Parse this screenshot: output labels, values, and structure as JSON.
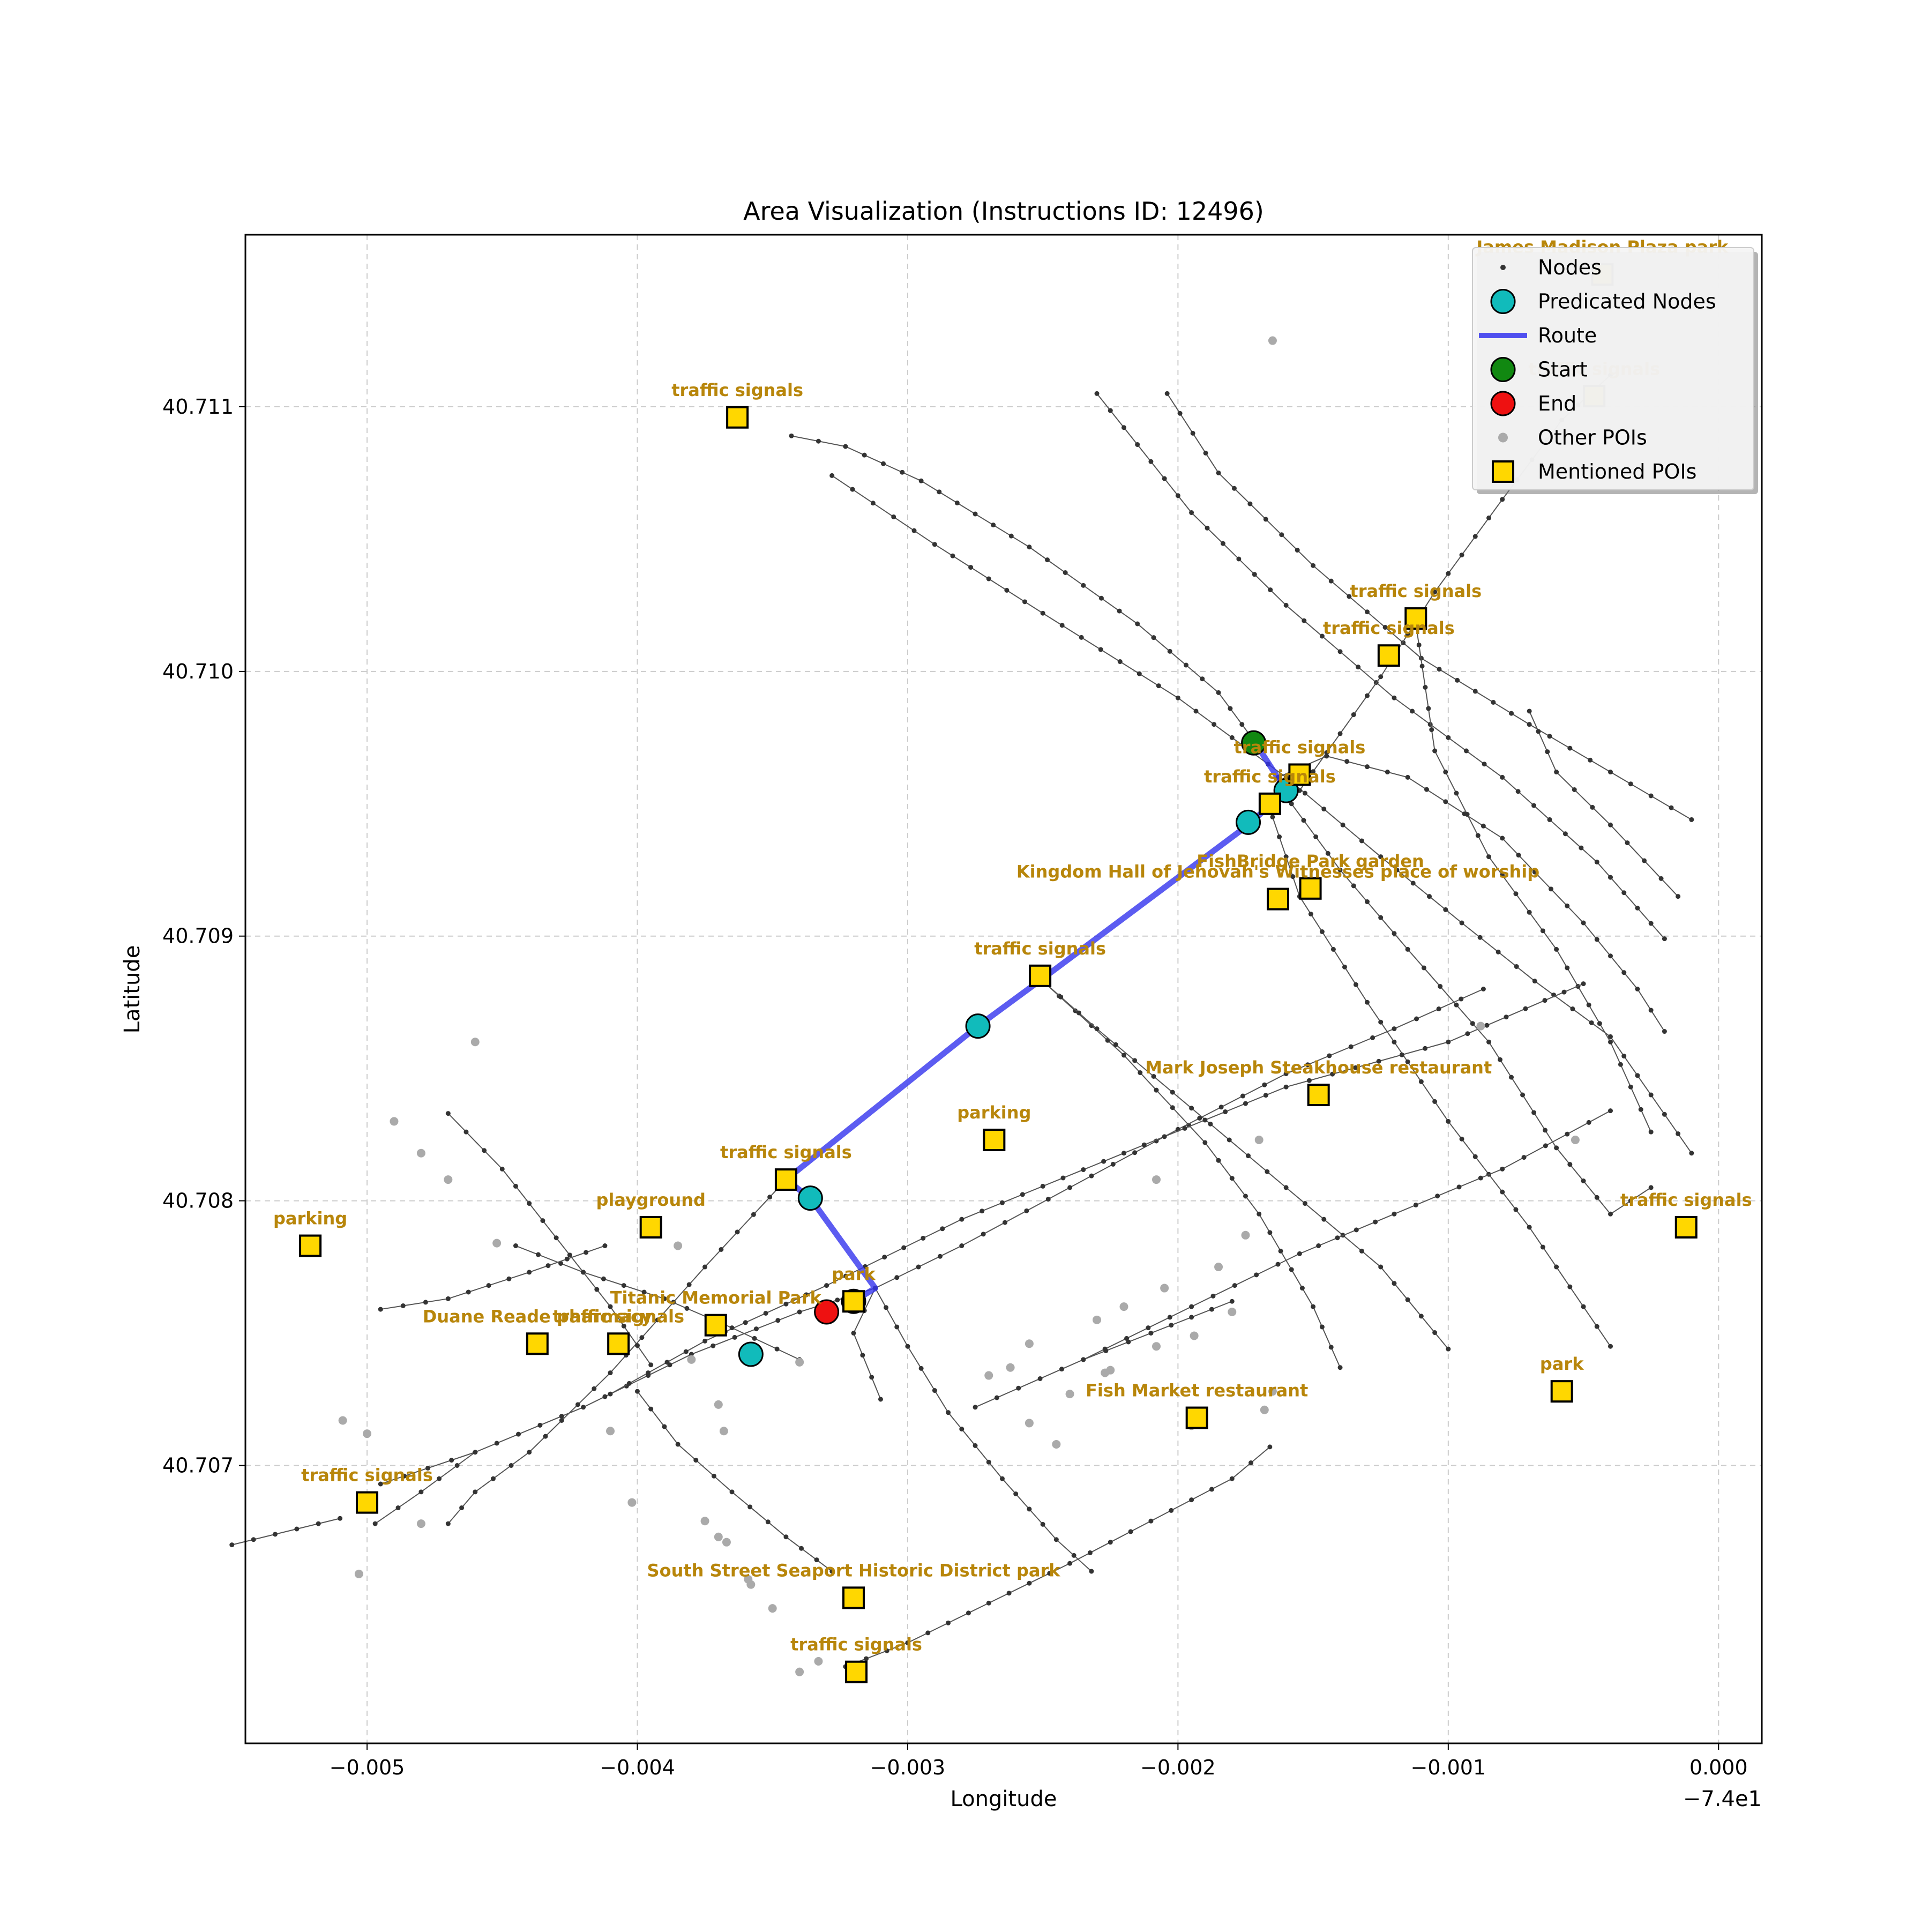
{
  "chart_data": {
    "type": "scatter",
    "title": "Area Visualization (Instructions ID: 12496)",
    "xlabel": "Longitude",
    "ylabel": "Latitude",
    "xlim": [
      -0.00545,
      0.00016
    ],
    "ylim": [
      40.70595,
      40.71165
    ],
    "x_offset_label": "−7.4e1",
    "grid": true,
    "x_ticks": [
      {
        "value": -0.005,
        "label": "−0.005"
      },
      {
        "value": -0.004,
        "label": "−0.004"
      },
      {
        "value": -0.003,
        "label": "−0.003"
      },
      {
        "value": -0.002,
        "label": "−0.002"
      },
      {
        "value": -0.001,
        "label": "−0.001"
      },
      {
        "value": 0.0,
        "label": "0.000"
      }
    ],
    "y_ticks": [
      {
        "value": 40.707,
        "label": "40.707"
      },
      {
        "value": 40.708,
        "label": "40.708"
      },
      {
        "value": 40.709,
        "label": "40.709"
      },
      {
        "value": 40.71,
        "label": "40.710"
      },
      {
        "value": 40.711,
        "label": "40.711"
      }
    ],
    "legend": {
      "position": "top-right",
      "entries": [
        {
          "name": "Nodes",
          "marker": "small-dot"
        },
        {
          "name": "Predicated Nodes",
          "marker": "cyan-circle"
        },
        {
          "name": "Route",
          "marker": "blue-line"
        },
        {
          "name": "Start",
          "marker": "green-circle"
        },
        {
          "name": "End",
          "marker": "red-circle"
        },
        {
          "name": "Other POIs",
          "marker": "gray-dot"
        },
        {
          "name": "Mentioned POIs",
          "marker": "gold-square"
        }
      ]
    },
    "colors": {
      "node": "#333333",
      "street": "#555555",
      "predicated": "#11bbbb",
      "route": "#3333ee",
      "start": "#118811",
      "end": "#ee1111",
      "other_poi": "#aaaaaa",
      "mentioned_poi": "#ffd700",
      "poi_label": "#b8860b",
      "grid": "#cccccc"
    },
    "streets": [
      [
        [
          -0.00343,
          40.71089
        ],
        [
          -0.00323,
          40.71085
        ],
        [
          -0.00295,
          40.71072
        ],
        [
          -0.00255,
          40.71047
        ],
        [
          -0.00215,
          40.71018
        ],
        [
          -0.00185,
          40.70992
        ],
        [
          -0.00172,
          40.70974
        ]
      ],
      [
        [
          -0.00328,
          40.71074
        ],
        [
          -0.0029,
          40.71048
        ],
        [
          -0.0025,
          40.71022
        ],
        [
          -0.002,
          40.7099
        ],
        [
          -0.0016,
          40.7096
        ],
        [
          -0.00125,
          40.7093
        ],
        [
          -0.00095,
          40.70905
        ],
        [
          -0.00068,
          40.70883
        ],
        [
          -0.0004,
          40.70862
        ],
        [
          -0.0001,
          40.70818
        ]
      ],
      [
        [
          -0.0023,
          40.71105
        ],
        [
          -0.00195,
          40.7106
        ],
        [
          -0.0016,
          40.71025
        ],
        [
          -0.0012,
          40.7099
        ],
        [
          -0.0008,
          40.7096
        ],
        [
          -0.00045,
          40.70928
        ],
        [
          -0.0002,
          40.70899
        ]
      ],
      [
        [
          -0.00204,
          40.71105
        ],
        [
          -0.00185,
          40.71075
        ],
        [
          -0.0015,
          40.7104
        ],
        [
          -0.0011,
          40.71005
        ],
        [
          -0.0007,
          40.7098
        ],
        [
          -0.0004,
          40.70962
        ],
        [
          -0.0001,
          40.70944
        ]
      ],
      [
        [
          -0.00163,
          40.7096
        ],
        [
          -0.00145,
          40.70968
        ],
        [
          -0.00115,
          40.7096
        ],
        [
          -0.0008,
          40.70937
        ],
        [
          -0.0005,
          40.70905
        ],
        [
          -0.0003,
          40.7088
        ],
        [
          -0.0002,
          40.70864
        ]
      ],
      [
        [
          -0.00155,
          40.70955
        ],
        [
          -0.00125,
          40.70998
        ],
        [
          -0.00105,
          40.7103
        ],
        [
          -0.0008,
          40.71065
        ],
        [
          -0.00058,
          40.71095
        ],
        [
          -0.0004,
          40.71112
        ]
      ],
      [
        [
          -0.00112,
          40.71018
        ],
        [
          -0.00105,
          40.7097
        ],
        [
          -0.00085,
          40.7093
        ],
        [
          -0.0006,
          40.70895
        ],
        [
          -0.0004,
          40.7086
        ],
        [
          -0.00025,
          40.70826
        ]
      ],
      [
        [
          -0.0007,
          40.70985
        ],
        [
          -0.0006,
          40.70962
        ],
        [
          -0.0004,
          40.70942
        ],
        [
          -0.00015,
          40.70915
        ]
      ],
      [
        [
          -0.00158,
          40.7095
        ],
        [
          -0.0014,
          40.70925
        ],
        [
          -0.00115,
          40.70895
        ],
        [
          -0.00085,
          40.7086
        ],
        [
          -0.0006,
          40.7082
        ],
        [
          -0.0004,
          40.70795
        ],
        [
          -0.00025,
          40.70805
        ]
      ],
      [
        [
          -0.00165,
          40.70945
        ],
        [
          -0.00155,
          40.70915
        ],
        [
          -0.0013,
          40.70875
        ],
        [
          -0.001,
          40.7083
        ],
        [
          -0.0007,
          40.7079
        ],
        [
          -0.0005,
          40.7076
        ],
        [
          -0.0004,
          40.70745
        ]
      ],
      [
        [
          -0.0025,
          40.70883
        ],
        [
          -0.0022,
          40.70855
        ],
        [
          -0.0019,
          40.70822
        ],
        [
          -0.0017,
          40.70795
        ],
        [
          -0.0015,
          40.7076
        ],
        [
          -0.0014,
          40.70737
        ]
      ],
      [
        [
          -0.0025,
          40.70883
        ],
        [
          -0.0023,
          40.70865
        ],
        [
          -0.00195,
          40.70835
        ],
        [
          -0.0016,
          40.70805
        ],
        [
          -0.00125,
          40.70775
        ],
        [
          -0.001,
          40.70744
        ]
      ],
      [
        [
          -0.00345,
          40.70808
        ],
        [
          -0.00375,
          40.70775
        ],
        [
          -0.0041,
          40.70735
        ],
        [
          -0.0044,
          40.70705
        ],
        [
          -0.0046,
          40.7069
        ],
        [
          -0.0047,
          40.70678
        ]
      ],
      [
        [
          -0.00312,
          40.70767
        ],
        [
          -0.0028,
          40.70783
        ],
        [
          -0.0024,
          40.70805
        ],
        [
          -0.002,
          40.70827
        ],
        [
          -0.0016,
          40.70848
        ],
        [
          -0.0012,
          40.70865
        ],
        [
          -0.00087,
          40.7088
        ]
      ],
      [
        [
          -0.00495,
          40.70693
        ],
        [
          -0.0046,
          40.70705
        ],
        [
          -0.0042,
          40.70722
        ],
        [
          -0.0038,
          40.70742
        ],
        [
          -0.0034,
          40.70758
        ],
        [
          -0.00312,
          40.70767
        ]
      ],
      [
        [
          -0.0055,
          40.7067
        ],
        [
          -0.0051,
          40.7068
        ]
      ],
      [
        [
          -0.0041,
          40.70727
        ],
        [
          -0.00375,
          40.70747
        ],
        [
          -0.0033,
          40.70768
        ],
        [
          -0.0028,
          40.70793
        ],
        [
          -0.0022,
          40.70818
        ],
        [
          -0.0016,
          40.70843
        ],
        [
          -0.001,
          40.7086
        ],
        [
          -0.0005,
          40.70882
        ]
      ],
      [
        [
          -0.00275,
          40.70722
        ],
        [
          -0.00235,
          40.7074
        ],
        [
          -0.00195,
          40.7076
        ],
        [
          -0.00155,
          40.7078
        ],
        [
          -0.0012,
          40.70795
        ],
        [
          -0.0008,
          40.70812
        ],
        [
          -0.0004,
          40.70834
        ]
      ],
      [
        [
          -0.00312,
          40.70767
        ],
        [
          -0.003,
          40.70745
        ],
        [
          -0.00285,
          40.7072
        ],
        [
          -0.00265,
          40.70695
        ],
        [
          -0.00245,
          40.70672
        ],
        [
          -0.00232,
          40.7066
        ]
      ],
      [
        [
          -0.00312,
          40.70767
        ],
        [
          -0.0032,
          40.7075
        ],
        [
          -0.0031,
          40.70725
        ]
      ],
      [
        [
          -0.004,
          40.70728
        ],
        [
          -0.00385,
          40.70708
        ],
        [
          -0.00365,
          40.7069
        ],
        [
          -0.00345,
          40.70673
        ],
        [
          -0.00328,
          40.7066
        ]
      ],
      [
        [
          -0.00445,
          40.70783
        ],
        [
          -0.0042,
          40.70773
        ],
        [
          -0.0039,
          40.70763
        ],
        [
          -0.00365,
          40.70752
        ],
        [
          -0.0034,
          40.7074
        ]
      ],
      [
        [
          -0.0047,
          40.70833
        ],
        [
          -0.0045,
          40.70812
        ],
        [
          -0.0043,
          40.70786
        ],
        [
          -0.0041,
          40.7076
        ],
        [
          -0.00395,
          40.70738
        ]
      ],
      [
        [
          -0.00495,
          40.70759
        ],
        [
          -0.0047,
          40.70763
        ],
        [
          -0.0044,
          40.70773
        ],
        [
          -0.00412,
          40.70783
        ]
      ],
      [
        [
          -0.00323,
          40.70624
        ],
        [
          -0.003,
          40.70633
        ],
        [
          -0.0027,
          40.70648
        ],
        [
          -0.0024,
          40.70663
        ],
        [
          -0.0021,
          40.70679
        ],
        [
          -0.0018,
          40.70695
        ],
        [
          -0.00166,
          40.70707
        ]
      ],
      [
        [
          -0.00235,
          40.7074
        ],
        [
          -0.0021,
          40.7075
        ],
        [
          -0.0018,
          40.70762
        ]
      ],
      [
        [
          -0.00497,
          40.70678
        ],
        [
          -0.0048,
          40.7069
        ],
        [
          -0.0046,
          40.70705
        ]
      ]
    ],
    "route": [
      [
        -0.00172,
        40.70974
      ],
      [
        -0.0016,
        40.70955
      ],
      [
        -0.00174,
        40.70942
      ],
      [
        -0.0025,
        40.70884
      ],
      [
        -0.00274,
        40.70866
      ],
      [
        -0.00345,
        40.70808
      ],
      [
        -0.00336,
        40.70801
      ],
      [
        -0.00312,
        40.70767
      ],
      [
        -0.0032,
        40.70762
      ]
    ],
    "predicated_nodes": [
      [
        -0.0016,
        40.70955
      ],
      [
        -0.00174,
        40.70943
      ],
      [
        -0.00274,
        40.70866
      ],
      [
        -0.00336,
        40.70801
      ],
      [
        -0.0032,
        40.70762
      ],
      [
        -0.00358,
        40.70742
      ]
    ],
    "start": [
      -0.00172,
      40.70973
    ],
    "end": [
      -0.0033,
      40.70758
    ],
    "other_pois": [
      [
        -0.00165,
        40.71125
      ],
      [
        -0.0046,
        40.7086
      ],
      [
        -0.0049,
        40.7083
      ],
      [
        -0.0048,
        40.70818
      ],
      [
        -0.0047,
        40.70808
      ],
      [
        -0.00452,
        40.70784
      ],
      [
        -0.00385,
        40.70783
      ],
      [
        -0.0041,
        40.70713
      ],
      [
        -0.0038,
        40.7074
      ],
      [
        -0.0037,
        40.70723
      ],
      [
        -0.00368,
        40.70713
      ],
      [
        -0.0034,
        40.70739
      ],
      [
        -0.00402,
        40.70686
      ],
      [
        -0.00375,
        40.70679
      ],
      [
        -0.0037,
        40.70673
      ],
      [
        -0.00367,
        40.70671
      ],
      [
        -0.00359,
        40.70657
      ],
      [
        -0.00358,
        40.70655
      ],
      [
        -0.0035,
        40.70646
      ],
      [
        -0.0034,
        40.70622
      ],
      [
        -0.00333,
        40.70626
      ],
      [
        -0.00509,
        40.70717
      ],
      [
        -0.005,
        40.70712
      ],
      [
        -0.0048,
        40.70678
      ],
      [
        -0.00503,
        40.70659
      ],
      [
        -0.0027,
        40.70734
      ],
      [
        -0.00262,
        40.70737
      ],
      [
        -0.00255,
        40.70746
      ],
      [
        -0.00255,
        40.70716
      ],
      [
        -0.00245,
        40.70708
      ],
      [
        -0.0024,
        40.70727
      ],
      [
        -0.0023,
        40.70755
      ],
      [
        -0.00227,
        40.70735
      ],
      [
        -0.00225,
        40.70736
      ],
      [
        -0.0022,
        40.7076
      ],
      [
        -0.00208,
        40.70745
      ],
      [
        -0.00205,
        40.70767
      ],
      [
        -0.00195,
        40.70715
      ],
      [
        -0.00194,
        40.70749
      ],
      [
        -0.00185,
        40.70775
      ],
      [
        -0.0018,
        40.70758
      ],
      [
        -0.00175,
        40.70787
      ],
      [
        -0.00168,
        40.70721
      ],
      [
        -0.00165,
        40.70728
      ],
      [
        -0.00208,
        40.70808
      ],
      [
        -0.0017,
        40.70823
      ],
      [
        -0.00088,
        40.70866
      ],
      [
        -0.00053,
        40.70823
      ]
    ],
    "mentioned_pois": [
      {
        "label": "James Madison Plaza   park",
        "x": -0.00043,
        "y": 40.7115
      },
      {
        "label": "traffic signals",
        "x": -0.00046,
        "y": 40.71104
      },
      {
        "label": "traffic signals",
        "x": -0.00363,
        "y": 40.71096
      },
      {
        "label": "traffic signals",
        "x": -0.00112,
        "y": 40.7102
      },
      {
        "label": "traffic signals",
        "x": -0.00122,
        "y": 40.71006
      },
      {
        "label": "traffic signals",
        "x": -0.00155,
        "y": 40.70961
      },
      {
        "label": "traffic signals",
        "x": -0.00166,
        "y": 40.7095
      },
      {
        "label": "FishBridge Park   garden",
        "x": -0.00151,
        "y": 40.70918
      },
      {
        "label": "Kingdom Hall of Jehovah's Witnesses place of worship",
        "x": -0.00163,
        "y": 40.70914
      },
      {
        "label": "traffic signals",
        "x": -0.00251,
        "y": 40.70885
      },
      {
        "label": "Mark Joseph Steakhouse restaurant",
        "x": -0.00148,
        "y": 40.7084
      },
      {
        "label": "parking",
        "x": -0.00268,
        "y": 40.70823
      },
      {
        "label": "traffic signals",
        "x": -0.00345,
        "y": 40.70808
      },
      {
        "label": "traffic signals",
        "x": -0.00012,
        "y": 40.7079
      },
      {
        "label": "parking",
        "x": -0.00521,
        "y": 40.70783
      },
      {
        "label": "playground",
        "x": -0.00395,
        "y": 40.7079
      },
      {
        "label": "Titanic Memorial Park",
        "x": -0.00371,
        "y": 40.70753
      },
      {
        "label": "park",
        "x": -0.0032,
        "y": 40.70762
      },
      {
        "label": "Duane Reade pharmacy",
        "x": -0.00437,
        "y": 40.70746
      },
      {
        "label": "traffic signals",
        "x": -0.00407,
        "y": 40.70746
      },
      {
        "label": "park",
        "x": -0.00058,
        "y": 40.70728
      },
      {
        "label": "Fish Market restaurant",
        "x": -0.00193,
        "y": 40.70718
      },
      {
        "label": "traffic signals",
        "x": -0.005,
        "y": 40.70686
      },
      {
        "label": "South Street Seaport Historic District   park",
        "x": -0.0032,
        "y": 40.7065
      },
      {
        "label": "traffic signals",
        "x": -0.00319,
        "y": 40.70622
      }
    ]
  }
}
